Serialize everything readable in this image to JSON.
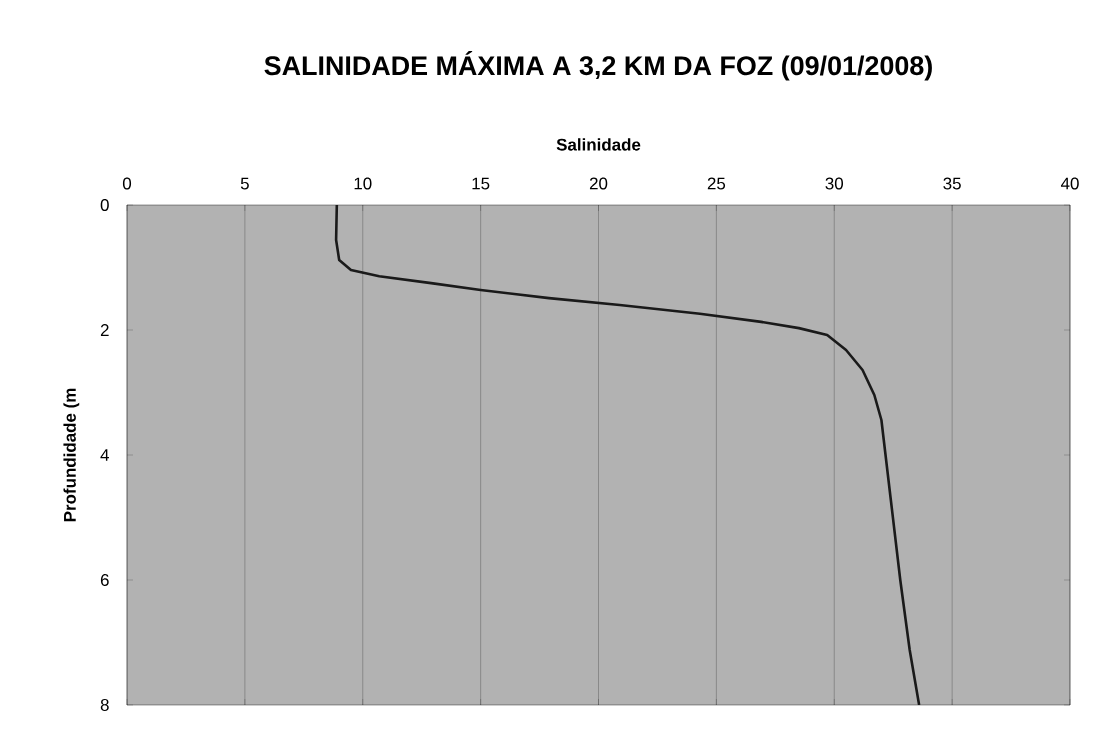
{
  "chart_data": {
    "type": "line",
    "title": "SALINIDADE MÁXIMA A 3,2 KM DA FOZ (09/01/2008)",
    "xlabel": "Salinidade",
    "ylabel": "Profundidade (m",
    "xlim": [
      0,
      40
    ],
    "xticks": [
      0,
      5,
      10,
      15,
      20,
      25,
      30,
      35,
      40
    ],
    "ylim": [
      8,
      0
    ],
    "yticks": [
      0,
      2,
      4,
      6,
      8
    ],
    "grid": "x",
    "marker": "none",
    "line_style": "solid",
    "series": [
      {
        "color": "#1a1a1a",
        "x": [
          8.9,
          8.87,
          9.0,
          9.5,
          10.7,
          12.9,
          15.0,
          17.9,
          20.9,
          24.3,
          26.9,
          28.5,
          29.7,
          30.5,
          31.2,
          31.7,
          32.0,
          32.1,
          32.4,
          32.8,
          33.2,
          33.6
        ],
        "values": [
          0,
          0.56,
          0.88,
          1.04,
          1.14,
          1.25,
          1.36,
          1.49,
          1.6,
          1.74,
          1.87,
          1.97,
          2.08,
          2.32,
          2.64,
          3.04,
          3.44,
          3.76,
          4.72,
          6.0,
          7.12,
          8.0
        ]
      }
    ]
  }
}
